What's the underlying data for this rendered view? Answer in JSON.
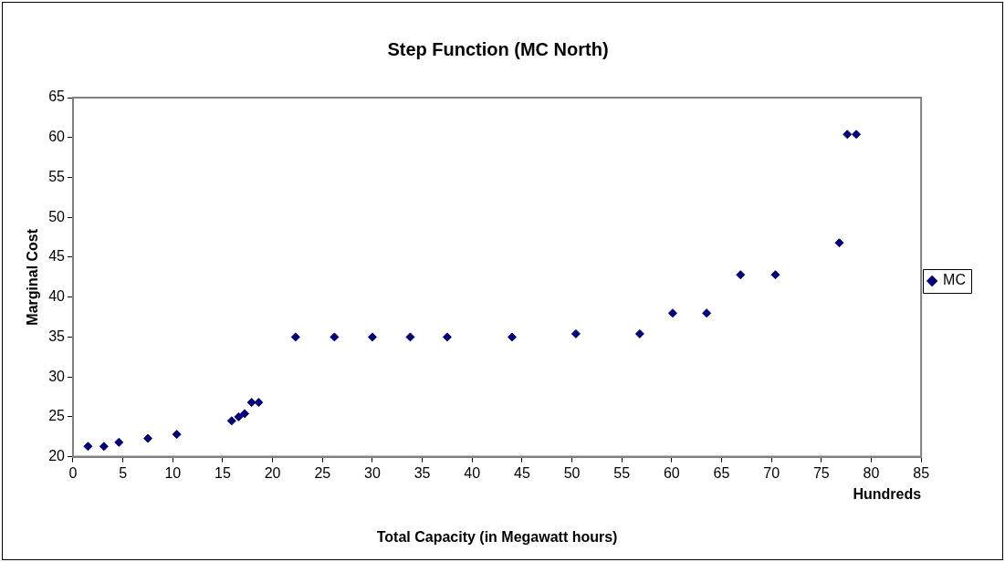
{
  "chart_data": {
    "type": "scatter",
    "title": "Step Function (MC North)",
    "xlabel": "Total Capacity (in Megawatt hours)",
    "ylabel": "Marginal Cost",
    "annotations": [
      "Hundreds"
    ],
    "series": [
      {
        "name": "MC",
        "color": "#000080",
        "x": [
          1.5,
          3.1,
          4.6,
          7.5,
          10.4,
          15.9,
          16.6,
          17.2,
          17.9,
          18.6,
          22.3,
          26.2,
          30,
          33.8,
          37.5,
          44,
          50.4,
          56.8,
          60.1,
          63.5,
          66.9,
          70.4,
          76.8,
          77.6,
          78.5
        ],
        "values": [
          21.3,
          21.3,
          21.8,
          22.3,
          22.8,
          24.5,
          25,
          25.4,
          26.8,
          26.8,
          35,
          35,
          35,
          35,
          35,
          35,
          35.4,
          35.4,
          38,
          38,
          42.8,
          42.8,
          46.8,
          60.4,
          60.4
        ]
      }
    ],
    "xlim": [
      0,
      85
    ],
    "xticks": [
      0,
      5,
      10,
      15,
      20,
      25,
      30,
      35,
      40,
      45,
      50,
      55,
      60,
      65,
      70,
      75,
      80,
      85
    ],
    "ylim": [
      20,
      65
    ],
    "yticks": [
      20,
      25,
      30,
      35,
      40,
      45,
      50,
      55,
      60,
      65
    ],
    "grid": false,
    "legend": "right",
    "marker": "diamond"
  }
}
